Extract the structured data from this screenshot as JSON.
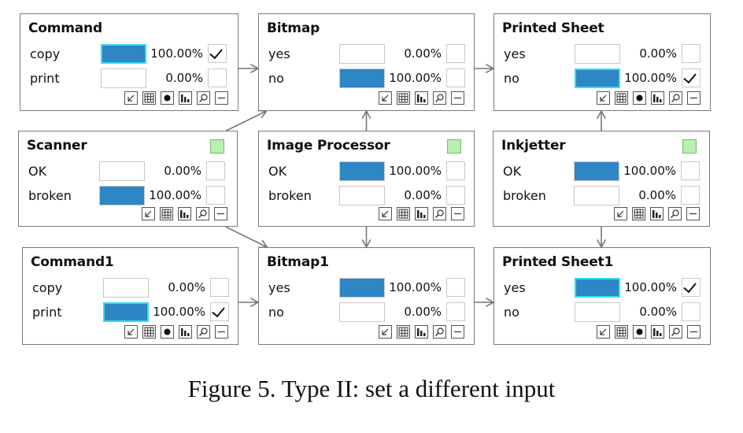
{
  "figure": {
    "caption": "Figure 5. Type II: set a different input"
  },
  "nodes": {
    "command": {
      "title": "Command",
      "has_evidence": false,
      "states": [
        {
          "label": "copy",
          "prob": 1.0,
          "prob_text": "100.00%",
          "selected": true,
          "checked": true
        },
        {
          "label": "print",
          "prob": 0.0,
          "prob_text": "0.00%",
          "selected": false,
          "checked": false
        }
      ],
      "toolbar": [
        "arrow-icon",
        "grid-icon",
        "dot-icon",
        "bar-chart-icon",
        "zoom-icon",
        "minimize-icon"
      ]
    },
    "bitmap": {
      "title": "Bitmap",
      "has_evidence": false,
      "states": [
        {
          "label": "yes",
          "prob": 0.0,
          "prob_text": "0.00%",
          "selected": false,
          "checked": false
        },
        {
          "label": "no",
          "prob": 1.0,
          "prob_text": "100.00%",
          "selected": false,
          "checked": false
        }
      ],
      "toolbar": [
        "arrow-icon",
        "grid-icon",
        "bar-chart-icon",
        "zoom-icon",
        "minimize-icon"
      ]
    },
    "printed_sheet": {
      "title": "Printed Sheet",
      "has_evidence": false,
      "states": [
        {
          "label": "yes",
          "prob": 0.0,
          "prob_text": "0.00%",
          "selected": false,
          "checked": false
        },
        {
          "label": "no",
          "prob": 1.0,
          "prob_text": "100.00%",
          "selected": true,
          "checked": true
        }
      ],
      "toolbar": [
        "arrow-icon",
        "grid-icon",
        "dot-icon",
        "bar-chart-icon",
        "zoom-icon",
        "minimize-icon"
      ]
    },
    "scanner": {
      "title": "Scanner",
      "has_evidence": true,
      "states": [
        {
          "label": "OK",
          "prob": 0.0,
          "prob_text": "0.00%",
          "selected": false,
          "checked": false
        },
        {
          "label": "broken",
          "prob": 1.0,
          "prob_text": "100.00%",
          "selected": false,
          "checked": false
        }
      ],
      "toolbar": [
        "arrow-icon",
        "grid-icon",
        "bar-chart-icon",
        "zoom-icon",
        "minimize-icon"
      ]
    },
    "image_processor": {
      "title": "Image Processor",
      "has_evidence": true,
      "states": [
        {
          "label": "OK",
          "prob": 1.0,
          "prob_text": "100.00%",
          "selected": false,
          "checked": false
        },
        {
          "label": "broken",
          "prob": 0.0,
          "prob_text": "0.00%",
          "selected": false,
          "checked": false
        }
      ],
      "toolbar": [
        "arrow-icon",
        "grid-icon",
        "bar-chart-icon",
        "zoom-icon",
        "minimize-icon"
      ]
    },
    "inkjetter": {
      "title": "Inkjetter",
      "has_evidence": true,
      "states": [
        {
          "label": "OK",
          "prob": 1.0,
          "prob_text": "100.00%",
          "selected": false,
          "checked": false
        },
        {
          "label": "broken",
          "prob": 0.0,
          "prob_text": "0.00%",
          "selected": false,
          "checked": false
        }
      ],
      "toolbar": [
        "arrow-icon",
        "grid-icon",
        "bar-chart-icon",
        "zoom-icon",
        "minimize-icon"
      ]
    },
    "command1": {
      "title": "Command1",
      "has_evidence": false,
      "states": [
        {
          "label": "copy",
          "prob": 0.0,
          "prob_text": "0.00%",
          "selected": false,
          "checked": false
        },
        {
          "label": "print",
          "prob": 1.0,
          "prob_text": "100.00%",
          "selected": true,
          "checked": true
        }
      ],
      "toolbar": [
        "arrow-icon",
        "grid-icon",
        "dot-icon",
        "bar-chart-icon",
        "zoom-icon",
        "minimize-icon"
      ]
    },
    "bitmap1": {
      "title": "Bitmap1",
      "has_evidence": false,
      "states": [
        {
          "label": "yes",
          "prob": 1.0,
          "prob_text": "100.00%",
          "selected": false,
          "checked": false
        },
        {
          "label": "no",
          "prob": 0.0,
          "prob_text": "0.00%",
          "selected": false,
          "checked": false
        }
      ],
      "toolbar": [
        "arrow-icon",
        "grid-icon",
        "bar-chart-icon",
        "zoom-icon",
        "minimize-icon"
      ]
    },
    "printed_sheet1": {
      "title": "Printed Sheet1",
      "has_evidence": false,
      "states": [
        {
          "label": "yes",
          "prob": 1.0,
          "prob_text": "100.00%",
          "selected": true,
          "checked": true
        },
        {
          "label": "no",
          "prob": 0.0,
          "prob_text": "0.00%",
          "selected": false,
          "checked": false
        }
      ],
      "toolbar": [
        "arrow-icon",
        "grid-icon",
        "dot-icon",
        "bar-chart-icon",
        "zoom-icon",
        "minimize-icon"
      ]
    }
  },
  "edges": [
    {
      "from": "command",
      "to": "bitmap"
    },
    {
      "from": "bitmap",
      "to": "printed_sheet"
    },
    {
      "from": "scanner",
      "to": "bitmap"
    },
    {
      "from": "image_processor",
      "to": "bitmap"
    },
    {
      "from": "inkjetter",
      "to": "printed_sheet"
    },
    {
      "from": "scanner",
      "to": "bitmap1"
    },
    {
      "from": "image_processor",
      "to": "bitmap1"
    },
    {
      "from": "inkjetter",
      "to": "printed_sheet1"
    },
    {
      "from": "command1",
      "to": "bitmap1"
    },
    {
      "from": "bitmap1",
      "to": "printed_sheet1"
    }
  ],
  "colors": {
    "bar_fill": "#2f86c4",
    "selected_border": "#31e0f0",
    "evidence_indicator": "#b8f0b0",
    "node_border": "#7a7a7a",
    "edge": "#777777"
  }
}
